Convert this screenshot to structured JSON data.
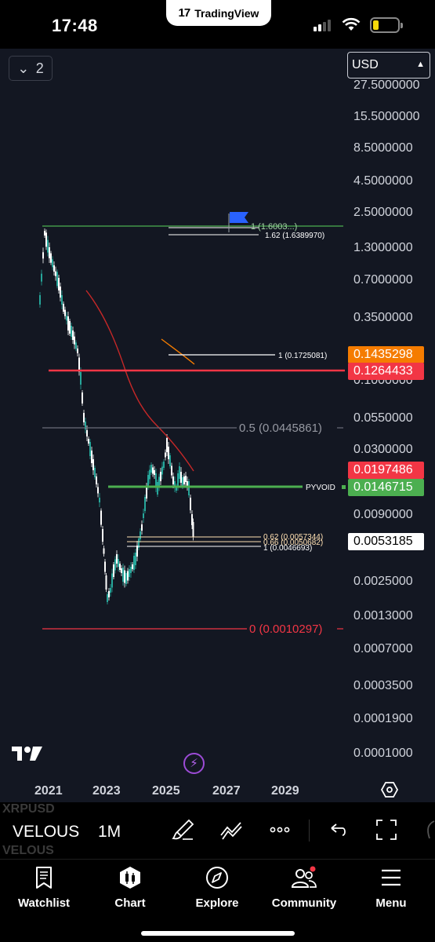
{
  "status_bar": {
    "time": "17:48",
    "app_name": "TradingView"
  },
  "chart": {
    "collapse_label": "2",
    "currency": "USD",
    "price_axis": [
      "27.5000000",
      "15.5000000",
      "8.5000000",
      "4.5000000",
      "2.5000000",
      "1.3000000",
      "0.7000000",
      "0.3500000",
      "0.1000000",
      "0.0550000",
      "0.0300000",
      "0.0090000",
      "0.0025000",
      "0.0013000",
      "0.0007000",
      "0.0003500",
      "0.0001900",
      "0.0001000"
    ],
    "time_axis": [
      "2021",
      "2023",
      "2025",
      "2027",
      "2029"
    ],
    "badges": {
      "b1": "0.1435298",
      "b2": "0.1264433",
      "b3": "0.0197486",
      "b4": "0.0146715",
      "b5": "0.0053185"
    },
    "annotations": {
      "fib_top_1": "1 (1.6003...)",
      "fib_top_162": "1.62 (1.6389970)",
      "fib_mid_1": "1 (0.1725081)",
      "fib_05": "0.5 (0.0445861)",
      "fib_0": "0 (0.0010297)",
      "fib_062": "0.62 (0.0057344)",
      "fib_066": "0.66 (0.0050682)",
      "fib_low_1": "1 (0.0046693)",
      "pyvoid": "PYVOID"
    },
    "colors": {
      "up": "#26a69a",
      "down": "#ffffff",
      "ma": "#c62828",
      "orange": "#f57c00",
      "red": "#f23645",
      "green": "#4caf50",
      "bg": "#131722"
    }
  },
  "toolbar": {
    "ghost_top": "XRPUSD",
    "symbol": "VELOUS",
    "ghost_bottom": "VELOUS",
    "interval": "1M"
  },
  "nav": [
    {
      "label": "Watchlist",
      "icon": "watchlist-icon"
    },
    {
      "label": "Chart",
      "icon": "chart-icon"
    },
    {
      "label": "Explore",
      "icon": "explore-icon"
    },
    {
      "label": "Community",
      "icon": "community-icon"
    },
    {
      "label": "Menu",
      "icon": "menu-icon"
    }
  ]
}
